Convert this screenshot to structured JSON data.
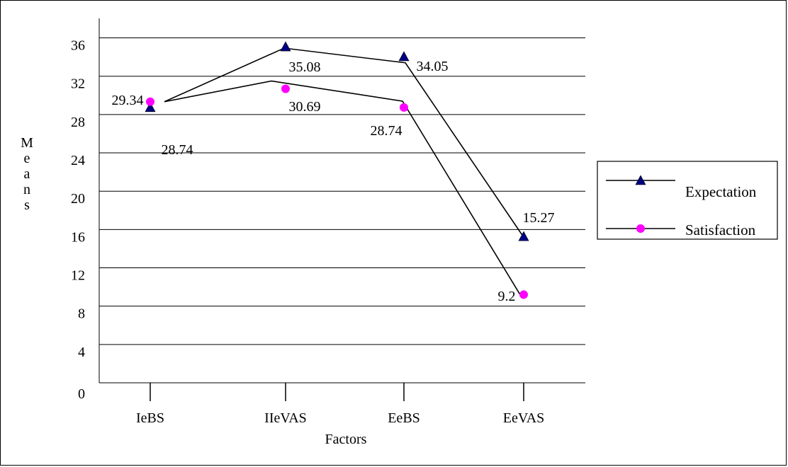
{
  "chart_data": {
    "type": "line",
    "xlabel": "Factors",
    "ylabel": "Means",
    "categories": [
      "IeBS",
      "IIeVAS",
      "EeBS",
      "EeVAS"
    ],
    "ylim": [
      0,
      38
    ],
    "yticks": [
      0,
      4,
      8,
      12,
      16,
      20,
      24,
      28,
      32,
      36
    ],
    "grid": true,
    "legend_position": "right",
    "series": [
      {
        "name": "Expectation",
        "marker": "triangle",
        "marker_color": "#000080",
        "line_color": "#000000",
        "values": [
          28.74,
          35.08,
          34.05,
          15.27
        ],
        "labels": [
          "28.74",
          "35.08",
          "34.05",
          "15.27"
        ]
      },
      {
        "name": "Satisfaction",
        "marker": "circle",
        "marker_color": "#ff00ff",
        "line_color": "#000000",
        "values": [
          29.34,
          30.69,
          28.74,
          9.2
        ],
        "labels": [
          "29.34",
          "30.69",
          "28.74",
          "9.2"
        ]
      }
    ]
  }
}
